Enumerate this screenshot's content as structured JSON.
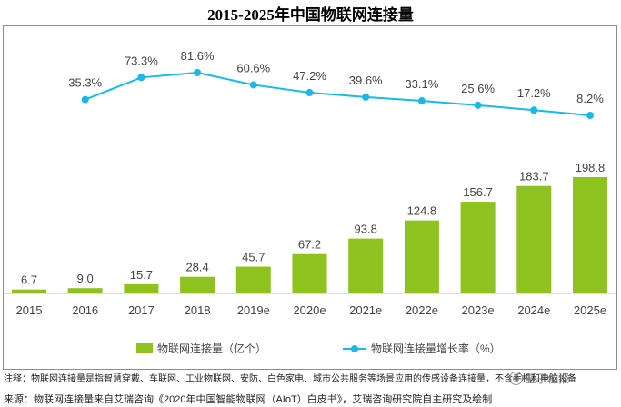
{
  "page": {
    "note": "注释：物联网连接量是指智慧穿戴、车联网、工业物联网、安防、白色家电、城市公共服务等场景应用的传感设备连接量，不含手机和电脑设备",
    "source": "来源：物联网连接量来自艾瑞咨询《2020年中国智能物联网（AIoT）白皮书》，艾瑞咨询研究院自主研究及绘制",
    "watermark": "量子位报"
  },
  "chart_data": {
    "type": "bar",
    "title": "2015-2025年中国物联网连接量",
    "categories": [
      "2015",
      "2016",
      "2017",
      "2018",
      "2019e",
      "2020e",
      "2021e",
      "2022e",
      "2023e",
      "2024e",
      "2025e"
    ],
    "series": [
      {
        "name": "物联网连接量（亿个）",
        "type": "bar",
        "values": [
          6.7,
          9.0,
          15.7,
          28.4,
          45.7,
          67.2,
          93.8,
          124.8,
          156.7,
          183.7,
          198.8
        ],
        "labels": [
          "6.7",
          "9.0",
          "15.7",
          "28.4",
          "45.7",
          "67.2",
          "93.8",
          "124.8",
          "156.7",
          "183.7",
          "198.8"
        ],
        "color": "#8dc21f"
      },
      {
        "name": "物联网连接量增长率（%）",
        "type": "line",
        "x": [
          "2016",
          "2017",
          "2018",
          "2019e",
          "2020e",
          "2021e",
          "2022e",
          "2023e",
          "2024e",
          "2025e"
        ],
        "values": [
          35.3,
          73.3,
          81.6,
          60.6,
          47.2,
          39.6,
          33.1,
          25.6,
          17.2,
          8.2
        ],
        "labels": [
          "35.3%",
          "73.3%",
          "81.6%",
          "60.6%",
          "47.2%",
          "39.6%",
          "33.1%",
          "25.6%",
          "17.2%",
          "8.2%"
        ],
        "color": "#1ab8e8"
      }
    ],
    "ylim_bar": [
      0,
      200
    ],
    "ylim_line": [
      0,
      81.6
    ],
    "grid": false,
    "legend_position": "bottom"
  }
}
